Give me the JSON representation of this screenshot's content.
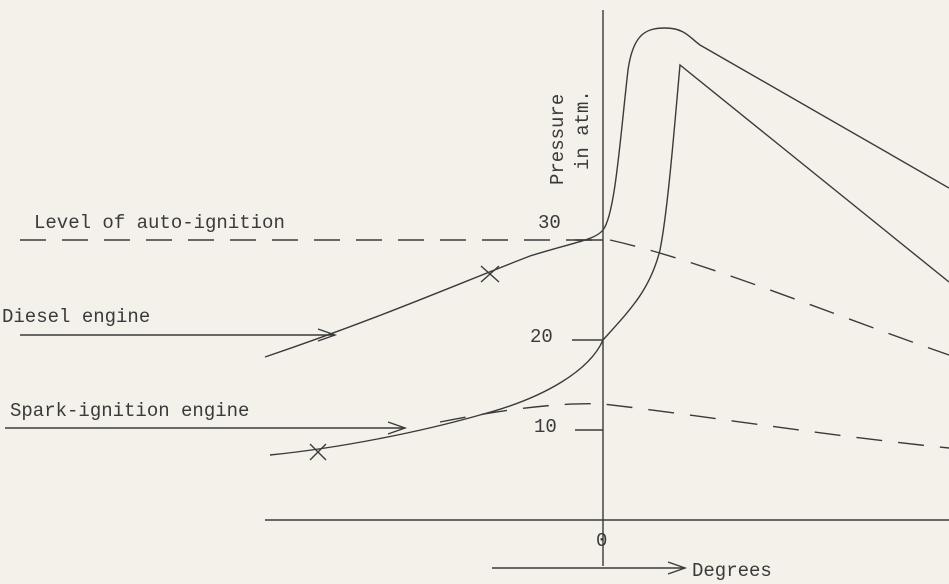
{
  "diagram": {
    "y_axis_label": [
      "Pressure",
      "in atm."
    ],
    "y_ticks": [
      "30",
      "20",
      "10"
    ],
    "x_tick": "0",
    "x_axis_label": "Degrees",
    "labels": {
      "auto_ignition": "Level of auto-ignition",
      "diesel": "Diesel engine",
      "spark": "Spark-ignition engine"
    }
  }
}
